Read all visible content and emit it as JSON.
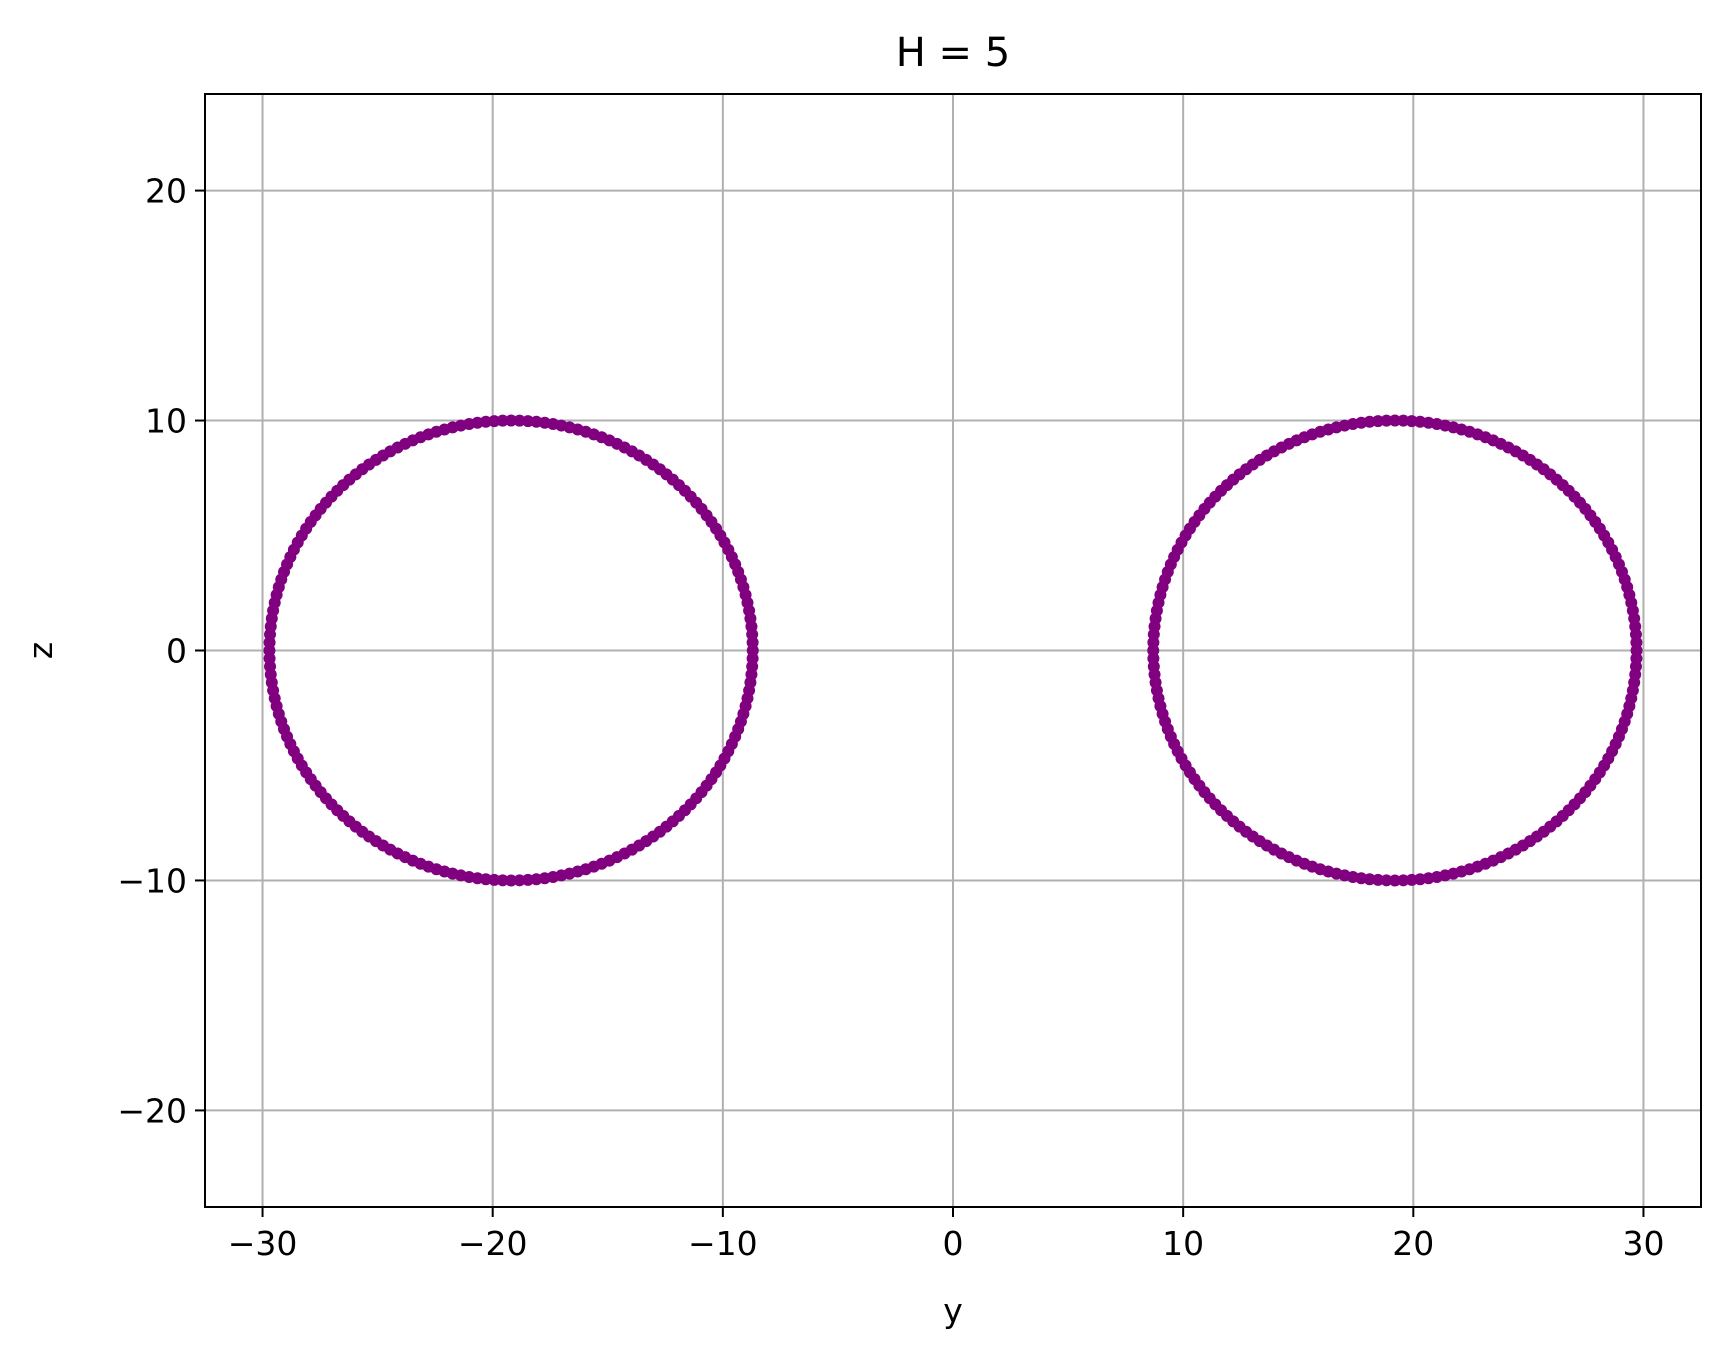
{
  "chart_data": {
    "type": "scatter",
    "title": "H = 5",
    "xlabel": "y",
    "ylabel": "z",
    "xlim": [
      -32.5,
      32.5
    ],
    "ylim": [
      -24.2,
      24.2
    ],
    "xticks": [
      -30,
      -20,
      -10,
      0,
      10,
      20,
      30
    ],
    "yticks": [
      -20,
      -10,
      0,
      10,
      20
    ],
    "xtick_labels": [
      "−30",
      "−20",
      "−10",
      "0",
      "10",
      "20",
      "30"
    ],
    "ytick_labels": [
      "−20",
      "−10",
      "0",
      "10",
      "20"
    ],
    "grid": true,
    "series": [
      {
        "center": [
          -19.2,
          0
        ],
        "radius_y": 10.5,
        "radius_z": 10.0,
        "color": "#800080"
      },
      {
        "center": [
          19.2,
          0
        ],
        "radius_y": 10.5,
        "radius_z": 10.0,
        "color": "#800080"
      }
    ]
  }
}
